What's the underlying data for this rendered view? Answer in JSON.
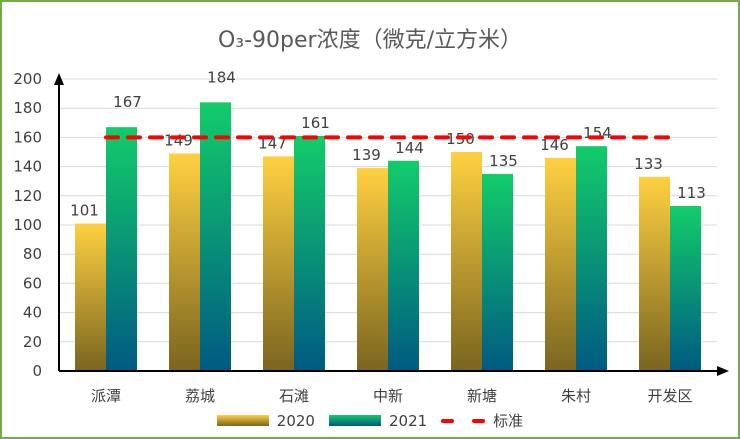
{
  "chart_data": {
    "type": "bar",
    "title": "O₃-90per浓度（微克/立方米）",
    "categories": [
      "派潭",
      "荔城",
      "石滩",
      "中新",
      "新塘",
      "朱村",
      "开发区"
    ],
    "series": [
      {
        "name": "2020",
        "values": [
          101,
          149,
          147,
          139,
          150,
          146,
          133
        ],
        "color_top": "#FFD040",
        "color_bottom": "#7A6520"
      },
      {
        "name": "2021",
        "values": [
          167,
          184,
          161,
          144,
          135,
          154,
          113
        ],
        "color_top": "#12CC6A",
        "color_bottom": "#005A82"
      }
    ],
    "reference_line": {
      "name": "标准",
      "value": 160,
      "color": "#FF0000",
      "style": "dashed"
    },
    "ylim": [
      0,
      200
    ],
    "yticks": [
      0,
      20,
      40,
      60,
      80,
      100,
      120,
      140,
      160,
      180,
      200
    ],
    "grid": true,
    "legend_position": "bottom"
  }
}
